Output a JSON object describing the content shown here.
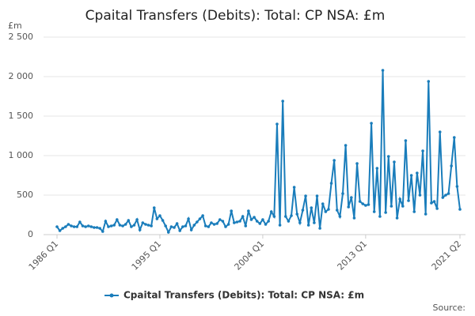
{
  "chart_data": {
    "type": "line",
    "title": "Cpaital Transfers (Debits): Total: CP NSA: £m",
    "y_unit": "£m",
    "source": "Source:",
    "categories": [
      "1986 Q1",
      null,
      null,
      null,
      null,
      null,
      null,
      null,
      null,
      null,
      null,
      null,
      null,
      null,
      null,
      null,
      null,
      null,
      null,
      null,
      null,
      null,
      null,
      null,
      null,
      null,
      null,
      null,
      null,
      null,
      null,
      null,
      null,
      null,
      null,
      null,
      "1995 Q1",
      null,
      null,
      null,
      null,
      null,
      null,
      null,
      null,
      null,
      null,
      null,
      null,
      null,
      null,
      null,
      null,
      null,
      null,
      null,
      null,
      null,
      null,
      null,
      null,
      null,
      null,
      null,
      null,
      null,
      null,
      null,
      null,
      null,
      null,
      null,
      "2004 Q1",
      null,
      null,
      null,
      null,
      null,
      null,
      null,
      null,
      null,
      null,
      null,
      null,
      null,
      null,
      null,
      null,
      null,
      null,
      null,
      null,
      null,
      null,
      null,
      null,
      null,
      null,
      null,
      null,
      null,
      null,
      null,
      null,
      null,
      null,
      null,
      "2013 Q1",
      null,
      null,
      null,
      null,
      null,
      null,
      null,
      null,
      null,
      null,
      null,
      null,
      null,
      null,
      null,
      null,
      null,
      null,
      null,
      null,
      null,
      null,
      null,
      null,
      null,
      null,
      null,
      null,
      null,
      null,
      null,
      null,
      "2021 Q2"
    ],
    "series": [
      {
        "name": "Cpaital Transfers (Debits): Total: CP NSA: £m",
        "color": "#1a7dbb",
        "values": [
          100,
          50,
          80,
          100,
          130,
          110,
          100,
          100,
          160,
          110,
          100,
          110,
          100,
          90,
          90,
          80,
          40,
          170,
          100,
          110,
          120,
          190,
          120,
          110,
          130,
          180,
          100,
          120,
          190,
          60,
          150,
          130,
          120,
          110,
          340,
          200,
          240,
          180,
          110,
          30,
          100,
          90,
          140,
          50,
          100,
          110,
          200,
          60,
          120,
          160,
          200,
          240,
          110,
          100,
          150,
          130,
          140,
          190,
          170,
          100,
          130,
          300,
          150,
          160,
          170,
          230,
          110,
          300,
          190,
          220,
          170,
          140,
          190,
          130,
          170,
          290,
          230,
          1400,
          120,
          1690,
          230,
          170,
          240,
          600,
          260,
          150,
          310,
          490,
          120,
          340,
          150,
          490,
          80,
          390,
          290,
          320,
          650,
          940,
          310,
          230,
          520,
          1130,
          350,
          470,
          210,
          900,
          420,
          390,
          370,
          380,
          1410,
          290,
          840,
          230,
          2080,
          280,
          990,
          360,
          920,
          210,
          450,
          360,
          1190,
          430,
          750,
          290,
          780,
          500,
          1060,
          260,
          1940,
          400,
          420,
          330,
          1300,
          470,
          500,
          520,
          870,
          1230,
          610,
          320
        ]
      }
    ],
    "ylim": [
      0,
      2500
    ],
    "yticks": [
      0,
      500,
      {
        "value": 1000,
        "label": "1 000"
      },
      {
        "value": 1500,
        "label": "1 500"
      },
      {
        "value": 2000,
        "label": "2 000"
      },
      {
        "value": 2500,
        "label": "2 500"
      }
    ],
    "grid": true
  }
}
